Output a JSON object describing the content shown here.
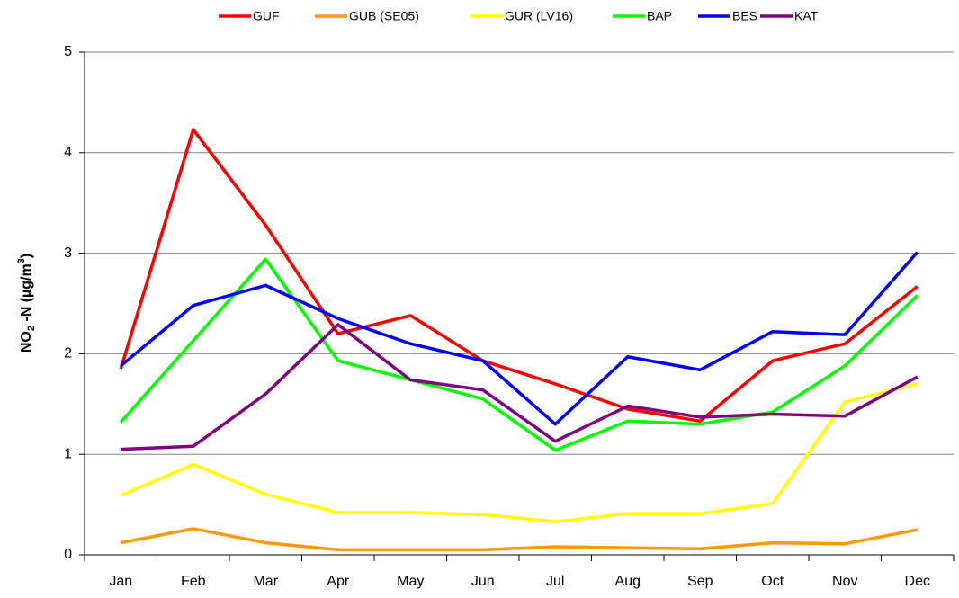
{
  "chart_data": {
    "type": "line",
    "y_label_parts": [
      "NO",
      "2",
      " -N  (µg/m",
      "3",
      ")"
    ],
    "categories": [
      "Jan",
      "Feb",
      "Mar",
      "Apr",
      "May",
      "Jun",
      "Jul",
      "Aug",
      "Sep",
      "Oct",
      "Nov",
      "Dec"
    ],
    "series": [
      {
        "name": "GUF",
        "color": "#ff0000",
        "values": [
          1.85,
          4.23,
          3.28,
          2.2,
          2.38,
          1.93,
          1.7,
          1.45,
          1.33,
          1.93,
          2.1,
          2.67
        ]
      },
      {
        "name": "GUB (SE05)",
        "color": "#ff9900",
        "values": [
          0.12,
          0.26,
          0.12,
          0.05,
          0.05,
          0.05,
          0.08,
          0.07,
          0.06,
          0.12,
          0.11,
          0.25
        ]
      },
      {
        "name": "GUR (LV16)",
        "color": "#ffff00",
        "values": [
          0.59,
          0.9,
          0.6,
          0.42,
          0.42,
          0.4,
          0.33,
          0.41,
          0.41,
          0.51,
          1.52,
          1.7
        ]
      },
      {
        "name": "BAP",
        "color": "#00ff00",
        "values": [
          1.32,
          2.13,
          2.94,
          1.93,
          1.74,
          1.55,
          1.04,
          1.33,
          1.3,
          1.42,
          1.88,
          2.58
        ]
      },
      {
        "name": "BES",
        "color": "#0000ff",
        "values": [
          1.88,
          2.48,
          2.68,
          2.35,
          2.1,
          1.93,
          1.3,
          1.97,
          1.84,
          2.22,
          2.19,
          3.01
        ]
      },
      {
        "name": "KAT",
        "color": "#800080",
        "values": [
          1.05,
          1.08,
          1.6,
          2.29,
          1.74,
          1.64,
          1.13,
          1.48,
          1.37,
          1.4,
          1.38,
          1.77
        ]
      }
    ],
    "ylim": [
      0,
      5
    ],
    "yticks": [
      0,
      1,
      2,
      3,
      4,
      5
    ],
    "grid": true,
    "legend": "top"
  }
}
